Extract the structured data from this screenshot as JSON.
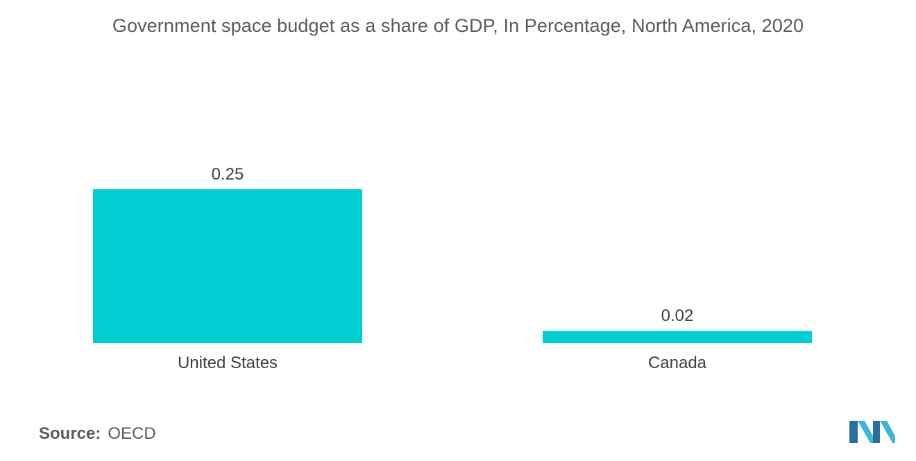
{
  "chart_data": {
    "type": "bar",
    "title": "Government space budget as a share of GDP, In Percentage, North America, 2020",
    "categories": [
      "United States",
      "Canada"
    ],
    "values": [
      0.25,
      0.02
    ],
    "value_labels": [
      "0.25",
      "0.02"
    ],
    "xlabel": "",
    "ylabel": "",
    "ylim": [
      0,
      0.25
    ],
    "grid": false,
    "legend": "none",
    "colors": {
      "bar": "#00CED1"
    }
  },
  "source": {
    "label": "Source:",
    "value": "OECD"
  },
  "logo": {
    "icon": "mordor-intelligence-logo",
    "colors": [
      "#2a6f9e",
      "#3fb6d8"
    ]
  }
}
